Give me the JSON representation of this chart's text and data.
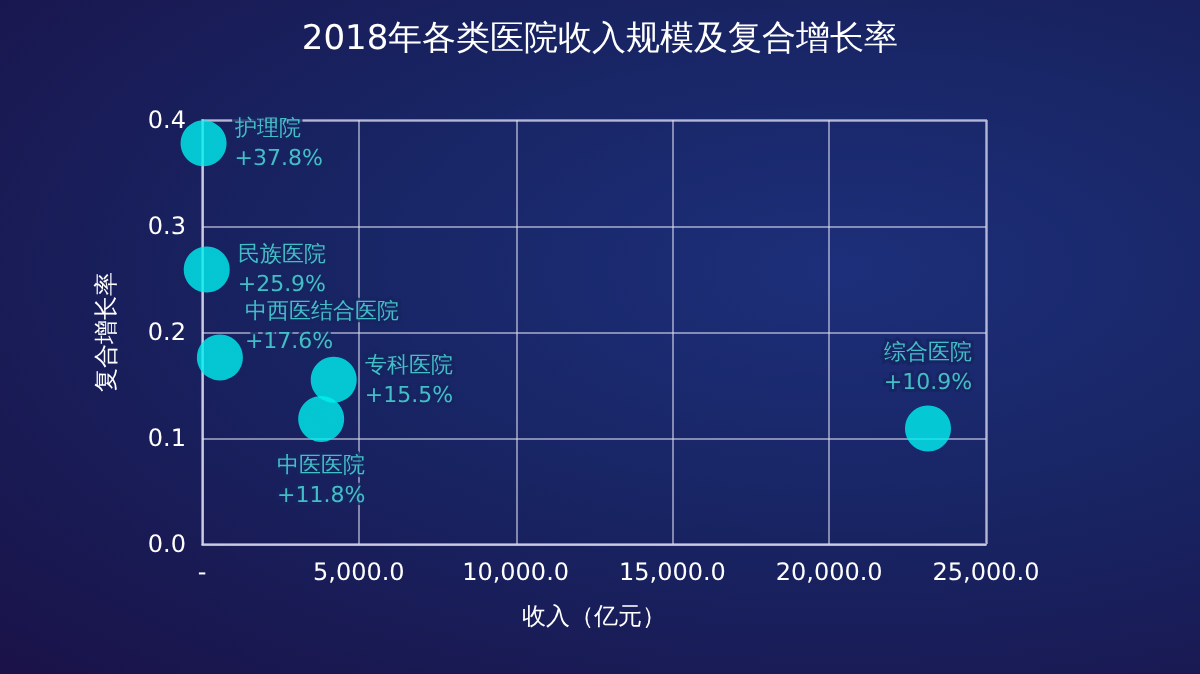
{
  "chart_data": {
    "type": "scatter",
    "title": "2018年各类医院收入规模及复合增长率",
    "xlabel": "收入（亿元）",
    "ylabel": "复合增长率",
    "series": [
      {
        "name": "护理院",
        "color": "#00f0f0",
        "x": [
          50
        ],
        "values": [
          0.378
        ],
        "value_labels": [
          "+37.8%"
        ]
      },
      {
        "name": "民族医院",
        "color": "#00f0f0",
        "x": [
          150
        ],
        "values": [
          0.259
        ],
        "value_labels": [
          "+25.9%"
        ]
      },
      {
        "name": "中西医结合医院",
        "color": "#00f0f0",
        "x": [
          570
        ],
        "values": [
          0.176
        ],
        "value_labels": [
          "+17.6%"
        ]
      },
      {
        "name": "专科医院",
        "color": "#00f0f0",
        "x": [
          4200
        ],
        "values": [
          0.155
        ],
        "value_labels": [
          "+15.5%"
        ]
      },
      {
        "name": "中医医院",
        "color": "#00f0f0",
        "x": [
          3800
        ],
        "values": [
          0.118
        ],
        "value_labels": [
          "+11.8%"
        ]
      },
      {
        "name": "综合医院",
        "color": "#00f0f0",
        "x": [
          23150
        ],
        "values": [
          0.109
        ],
        "value_labels": [
          "+10.9%"
        ]
      }
    ],
    "xlim": [
      0,
      25000
    ],
    "xticks": [
      {
        "value": 0,
        "label": "-"
      },
      {
        "value": 5000,
        "label": "5,000.0"
      },
      {
        "value": 10000,
        "label": "10,000.0"
      },
      {
        "value": 15000,
        "label": "15,000.0"
      },
      {
        "value": 20000,
        "label": "20,000.0"
      },
      {
        "value": 25000,
        "label": "25,000.0"
      }
    ],
    "ylim": [
      0,
      0.4
    ],
    "yticks": [
      {
        "value": 0,
        "label": "0.0"
      },
      {
        "value": 0.1,
        "label": "0.1"
      },
      {
        "value": 0.2,
        "label": "0.2"
      },
      {
        "value": 0.3,
        "label": "0.3"
      },
      {
        "value": 0.4,
        "label": "0.4"
      }
    ],
    "grid": true,
    "marker": "circle",
    "legend": false
  }
}
